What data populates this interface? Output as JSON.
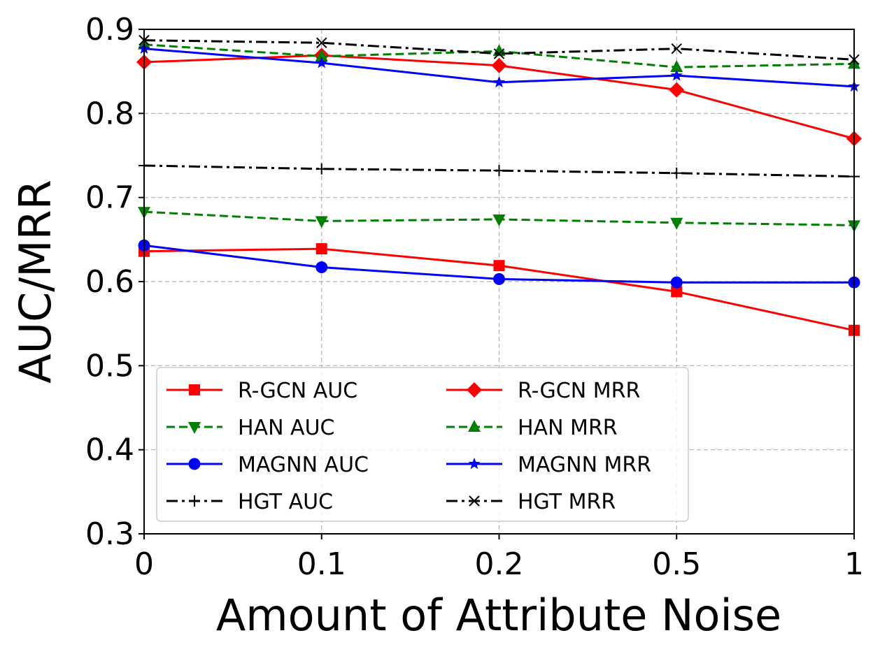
{
  "chart_data": {
    "type": "line",
    "title": "",
    "xlabel": "Amount of Attribute Noise",
    "ylabel": "AUC/MRR",
    "categories": [
      "0",
      "0.1",
      "0.2",
      "0.5",
      "1"
    ],
    "ylim": [
      0.3,
      0.9
    ],
    "yticks": [
      "0.3",
      "0.4",
      "0.5",
      "0.6",
      "0.7",
      "0.8",
      "0.9"
    ],
    "grid": true,
    "legend_position": "lower-left",
    "legend_columns": 2,
    "series": [
      {
        "name": "R-GCN AUC",
        "color": "#ff0000",
        "dash": "solid",
        "marker": "square",
        "values": [
          0.636,
          0.639,
          0.619,
          0.588,
          0.542
        ]
      },
      {
        "name": "HAN AUC",
        "color": "#008000",
        "dash": "dashed",
        "marker": "triangle-down",
        "values": [
          0.683,
          0.672,
          0.674,
          0.67,
          0.667
        ]
      },
      {
        "name": "MAGNN AUC",
        "color": "#0000ff",
        "dash": "solid",
        "marker": "circle",
        "values": [
          0.643,
          0.617,
          0.603,
          0.599,
          0.599
        ]
      },
      {
        "name": "HGT AUC",
        "color": "#000000",
        "dash": "dashdot",
        "marker": "plus",
        "values": [
          0.738,
          0.734,
          0.732,
          0.729,
          0.725
        ]
      },
      {
        "name": "R-GCN MRR",
        "color": "#ff0000",
        "dash": "solid",
        "marker": "diamond",
        "values": [
          0.861,
          0.869,
          0.857,
          0.828,
          0.77
        ]
      },
      {
        "name": "HAN MRR",
        "color": "#008000",
        "dash": "dashed",
        "marker": "triangle-up",
        "values": [
          0.882,
          0.868,
          0.874,
          0.855,
          0.859
        ]
      },
      {
        "name": "MAGNN MRR",
        "color": "#0000ff",
        "dash": "solid",
        "marker": "star",
        "values": [
          0.877,
          0.86,
          0.837,
          0.845,
          0.832
        ]
      },
      {
        "name": "HGT MRR",
        "color": "#000000",
        "dash": "dashdot",
        "marker": "x",
        "values": [
          0.887,
          0.884,
          0.871,
          0.877,
          0.864
        ]
      }
    ]
  }
}
